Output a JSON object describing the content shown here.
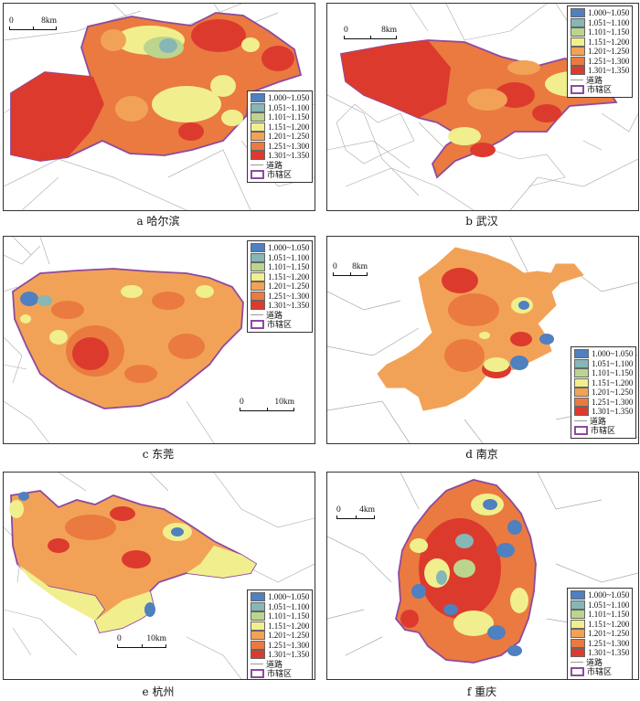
{
  "colors": {
    "c1": "#4f80c0",
    "c2": "#86b7b5",
    "c3": "#bcd58e",
    "c4": "#f1ef8d",
    "c5": "#f2a257",
    "c6": "#ea7a40",
    "c7": "#dd3a2e",
    "boundary": "#8e4a9e",
    "road": "#a9a9a9"
  },
  "legend": {
    "classes": [
      "1.000~1.050",
      "1.051~1.100",
      "1.101~1.150",
      "1.151~1.200",
      "1.201~1.250",
      "1.251~1.300",
      "1.301~1.350"
    ],
    "road": "道路",
    "district": "市辖区"
  },
  "panels": [
    {
      "caption": "a  哈尔滨",
      "scale": {
        "start": "0",
        "end": "8km"
      }
    },
    {
      "caption": "b  武汉",
      "scale": {
        "start": "0",
        "end": "8km"
      }
    },
    {
      "caption": "c  东莞",
      "scale": {
        "start": "0",
        "end": "10km"
      }
    },
    {
      "caption": "d  南京",
      "scale": {
        "start": "0",
        "end": "8km"
      }
    },
    {
      "caption": "e  杭州",
      "scale": {
        "start": "0",
        "end": "10km"
      }
    },
    {
      "caption": "f  重庆",
      "scale": {
        "start": "0",
        "end": "4km"
      }
    }
  ]
}
